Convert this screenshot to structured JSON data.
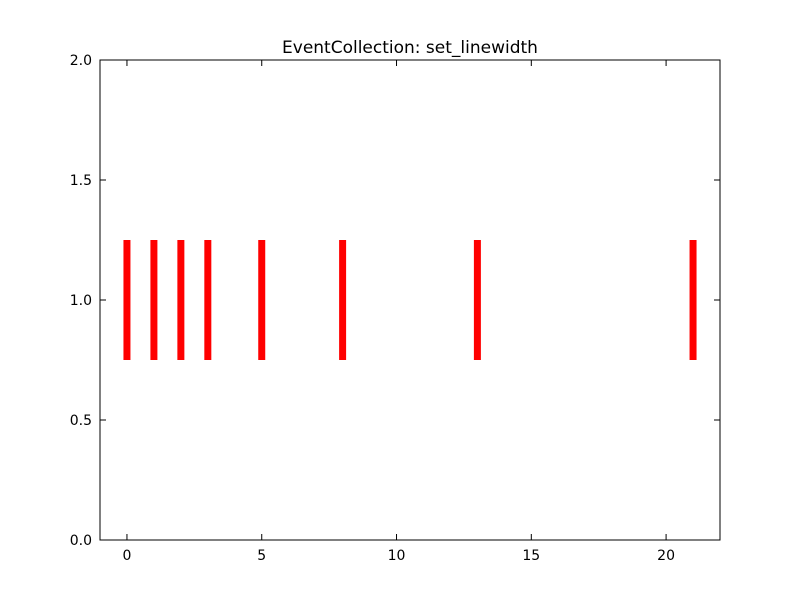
{
  "chart_data": {
    "type": "eventplot",
    "title": "EventCollection: set_linewidth",
    "xlabel": "",
    "ylabel": "",
    "xlim": [
      -1,
      22
    ],
    "ylim": [
      0,
      2
    ],
    "x_ticks": [
      0,
      5,
      10,
      15,
      20
    ],
    "x_tick_labels": [
      "0",
      "5",
      "10",
      "15",
      "20"
    ],
    "y_ticks": [
      0,
      0.5,
      1,
      1.5,
      2
    ],
    "y_tick_labels": [
      "0.0",
      "0.5",
      "1.0",
      "1.5",
      "2.0"
    ],
    "grid": false,
    "series": [
      {
        "positions": [
          0,
          1,
          2,
          3,
          5,
          8,
          13,
          21
        ],
        "lineoffset": 1.0,
        "linelength": 0.5,
        "color": "#ff0000"
      }
    ]
  }
}
